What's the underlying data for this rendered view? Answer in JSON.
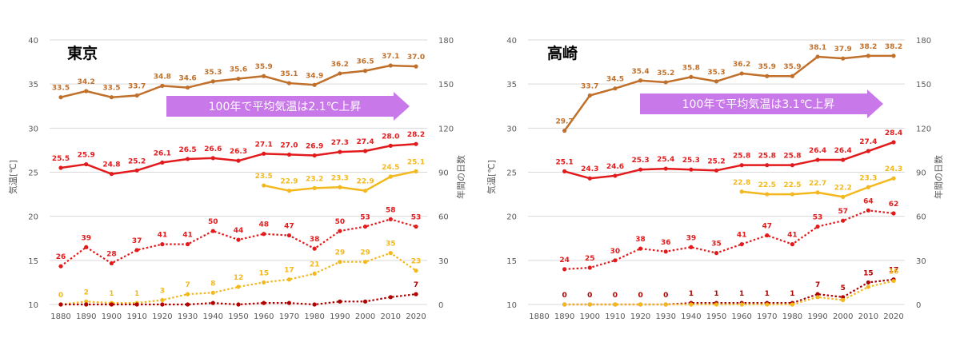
{
  "colors": {
    "max_temp": "#c0702a",
    "mean_temp": "#e31a1c",
    "min_temp": "#f3b81d",
    "hot_days": "#e31a1c",
    "extreme_days": "#b00000",
    "tropical_nights": "#f3b81d",
    "banner": "#c878e8"
  },
  "chart_data": [
    {
      "type": "line",
      "title": "東京",
      "annotation": "100年で平均気温は2.1℃上昇",
      "ylabel": "気温[℃]",
      "y2label": "年間の日数",
      "ylim": [
        10,
        40
      ],
      "y2lim": [
        0,
        180
      ],
      "yticks": [
        10,
        15,
        20,
        25,
        30,
        35,
        40
      ],
      "y2ticks": [
        0,
        30,
        60,
        90,
        120,
        150,
        180
      ],
      "x": [
        1880,
        1890,
        1900,
        1910,
        1920,
        1930,
        1940,
        1950,
        1960,
        1970,
        1980,
        1990,
        2000,
        2010,
        2020
      ],
      "series": [
        {
          "axis": "left",
          "style": "solid",
          "color_key": "max_temp",
          "x": [
            1880,
            1890,
            1900,
            1910,
            1920,
            1930,
            1940,
            1950,
            1960,
            1970,
            1980,
            1990,
            2000,
            2010,
            2020
          ],
          "values": [
            33.5,
            34.2,
            33.5,
            33.7,
            34.8,
            34.6,
            35.3,
            35.6,
            35.9,
            35.1,
            34.9,
            36.2,
            36.5,
            37.1,
            37.0
          ],
          "labels": [
            "33.5",
            "34.2",
            "33.5",
            "33.7",
            "34.8",
            "34.6",
            "35.3",
            "35.6",
            "35.9",
            "35.1",
            "34.9",
            "36.2",
            "36.5",
            "37.1",
            "37.0"
          ]
        },
        {
          "axis": "left",
          "style": "solid",
          "color_key": "mean_temp",
          "x": [
            1880,
            1890,
            1900,
            1910,
            1920,
            1930,
            1940,
            1950,
            1960,
            1970,
            1980,
            1990,
            2000,
            2010,
            2020
          ],
          "values": [
            25.5,
            25.9,
            24.8,
            25.2,
            26.1,
            26.5,
            26.6,
            26.3,
            27.1,
            27.0,
            26.9,
            27.3,
            27.4,
            28.0,
            28.2
          ],
          "labels": [
            "25.5",
            "25.9",
            "24.8",
            "25.2",
            "26.1",
            "26.5",
            "26.6",
            "26.3",
            "27.1",
            "27.0",
            "26.9",
            "27.3",
            "27.4",
            "28.0",
            "28.2"
          ]
        },
        {
          "axis": "left",
          "style": "solid",
          "color_key": "min_temp",
          "x": [
            1960,
            1970,
            1980,
            1990,
            2000,
            2010,
            2020
          ],
          "values": [
            23.5,
            22.9,
            23.2,
            23.3,
            22.9,
            24.5,
            25.1
          ],
          "labels": [
            "23.5",
            "22.9",
            "23.2",
            "23.3",
            "22.9",
            "24.5",
            "25.1"
          ]
        },
        {
          "axis": "right",
          "style": "dotted",
          "color_key": "hot_days",
          "x": [
            1880,
            1890,
            1900,
            1910,
            1920,
            1930,
            1940,
            1950,
            1960,
            1970,
            1980,
            1990,
            2000,
            2010,
            2020
          ],
          "values": [
            26,
            39,
            28,
            37,
            41,
            41,
            50,
            44,
            48,
            47,
            38,
            50,
            53,
            58,
            53
          ],
          "labels": [
            "26",
            "39",
            "28",
            "37",
            "41",
            "41",
            "50",
            "44",
            "48",
            "47",
            "38",
            "50",
            "53",
            "58",
            "53"
          ]
        },
        {
          "axis": "right",
          "style": "dotted",
          "color_key": "tropical_nights",
          "x": [
            1880,
            1890,
            1900,
            1910,
            1920,
            1930,
            1940,
            1950,
            1960,
            1970,
            1980,
            1990,
            2000,
            2010,
            2020
          ],
          "values": [
            0,
            2,
            1,
            1,
            3,
            7,
            8,
            12,
            15,
            17,
            21,
            29,
            29,
            35,
            23
          ],
          "labels": [
            "0",
            "2",
            "1",
            "1",
            "3",
            "7",
            "8",
            "12",
            "15",
            "17",
            "21",
            "29",
            "29",
            "35",
            "23"
          ]
        },
        {
          "axis": "right",
          "style": "dotted",
          "color_key": "extreme_days",
          "x": [
            1880,
            1890,
            1900,
            1910,
            1920,
            1930,
            1940,
            1950,
            1960,
            1970,
            1980,
            1990,
            2000,
            2010,
            2020
          ],
          "values": [
            0,
            0,
            0,
            0,
            0,
            0,
            1,
            0,
            1,
            1,
            0,
            2,
            2,
            5,
            7
          ],
          "labels": [
            "",
            "",
            "",
            "",
            "",
            "",
            "",
            "",
            "",
            "",
            "",
            "",
            "",
            "",
            "7"
          ]
        }
      ]
    },
    {
      "type": "line",
      "title": "高崎",
      "annotation": "100年で平均気温は3.1℃上昇",
      "ylabel": "気温[℃]",
      "y2label": "年間の日数",
      "ylim": [
        10,
        40
      ],
      "y2lim": [
        0,
        180
      ],
      "yticks": [
        10,
        15,
        20,
        25,
        30,
        35,
        40
      ],
      "y2ticks": [
        0,
        30,
        60,
        90,
        120,
        150,
        180
      ],
      "x": [
        1880,
        1890,
        1900,
        1910,
        1920,
        1930,
        1940,
        1950,
        1960,
        1970,
        1980,
        1990,
        2000,
        2010,
        2020
      ],
      "series": [
        {
          "axis": "left",
          "style": "solid",
          "color_key": "max_temp",
          "x": [
            1890,
            1900,
            1910,
            1920,
            1930,
            1940,
            1950,
            1960,
            1970,
            1980,
            1990,
            2000,
            2010,
            2020
          ],
          "values": [
            29.7,
            33.7,
            34.5,
            35.4,
            35.2,
            35.8,
            35.3,
            36.2,
            35.9,
            35.9,
            38.1,
            37.9,
            38.2,
            38.2
          ],
          "labels": [
            "29.7",
            "33.7",
            "34.5",
            "35.4",
            "35.2",
            "35.8",
            "35.3",
            "36.2",
            "35.9",
            "35.9",
            "38.1",
            "37.9",
            "38.2",
            "38.2"
          ]
        },
        {
          "axis": "left",
          "style": "solid",
          "color_key": "mean_temp",
          "x": [
            1890,
            1900,
            1910,
            1920,
            1930,
            1940,
            1950,
            1960,
            1970,
            1980,
            1990,
            2000,
            2010,
            2020
          ],
          "values": [
            25.1,
            24.3,
            24.6,
            25.3,
            25.4,
            25.3,
            25.2,
            25.8,
            25.8,
            25.8,
            26.4,
            26.4,
            27.4,
            28.4
          ],
          "labels": [
            "25.1",
            "24.3",
            "24.6",
            "25.3",
            "25.4",
            "25.3",
            "25.2",
            "25.8",
            "25.8",
            "25.8",
            "26.4",
            "26.4",
            "27.4",
            "28.4"
          ]
        },
        {
          "axis": "left",
          "style": "solid",
          "color_key": "min_temp",
          "x": [
            1960,
            1970,
            1980,
            1990,
            2000,
            2010,
            2020
          ],
          "values": [
            22.8,
            22.5,
            22.5,
            22.7,
            22.2,
            23.3,
            24.3
          ],
          "labels": [
            "22.8",
            "22.5",
            "22.5",
            "22.7",
            "22.2",
            "23.3",
            "24.3"
          ]
        },
        {
          "axis": "right",
          "style": "dotted",
          "color_key": "hot_days",
          "x": [
            1890,
            1900,
            1910,
            1920,
            1930,
            1940,
            1950,
            1960,
            1970,
            1980,
            1990,
            2000,
            2010,
            2020
          ],
          "values": [
            24,
            25,
            30,
            38,
            36,
            39,
            35,
            41,
            47,
            41,
            53,
            57,
            64,
            62
          ],
          "labels": [
            "24",
            "25",
            "30",
            "38",
            "36",
            "39",
            "35",
            "41",
            "47",
            "41",
            "53",
            "57",
            "64",
            "62"
          ]
        },
        {
          "axis": "right",
          "style": "dotted",
          "color_key": "extreme_days",
          "x": [
            1890,
            1900,
            1910,
            1920,
            1930,
            1940,
            1950,
            1960,
            1970,
            1980,
            1990,
            2000,
            2010,
            2020
          ],
          "values": [
            0,
            0,
            0,
            0,
            0,
            1,
            1,
            1,
            1,
            1,
            7,
            5,
            15,
            17
          ],
          "labels": [
            "0",
            "0",
            "0",
            "0",
            "0",
            "1",
            "1",
            "1",
            "1",
            "1",
            "7",
            "5",
            "15",
            "17"
          ]
        },
        {
          "axis": "right",
          "style": "dotted",
          "color_key": "tropical_nights",
          "x": [
            1890,
            1900,
            1910,
            1920,
            1930,
            1940,
            1950,
            1960,
            1970,
            1980,
            1990,
            2000,
            2010,
            2020
          ],
          "values": [
            0,
            0,
            0,
            0,
            0,
            0,
            0,
            0,
            0,
            0,
            5,
            3,
            12,
            16
          ],
          "labels": [
            "",
            "",
            "",
            "",
            "",
            "",
            "",
            "",
            "",
            "",
            "",
            "",
            "",
            "16"
          ]
        }
      ]
    }
  ]
}
